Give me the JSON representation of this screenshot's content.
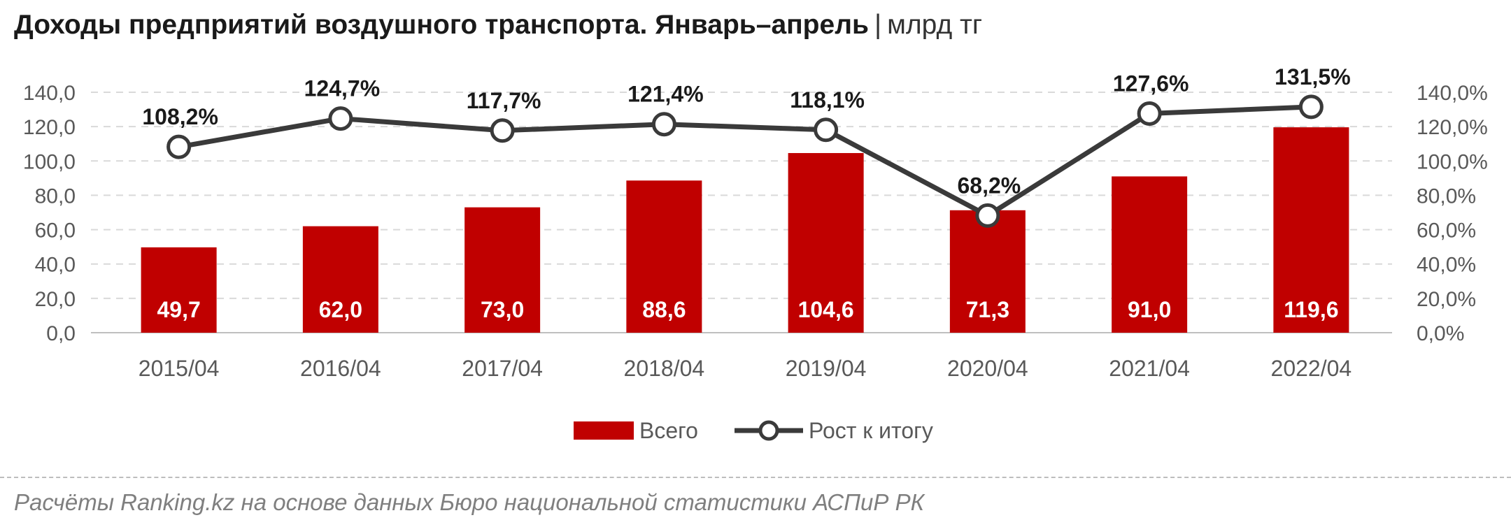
{
  "title": {
    "main": "Доходы предприятий воздушного транспорта. Январь–апрель",
    "separator": "|",
    "unit": "млрд тг"
  },
  "source": "Расчёты Ranking.kz на основе данных Бюро национальной статистики АСПиР РК",
  "colors": {
    "bar": "#c00000",
    "line": "#3a3a3a",
    "marker_fill": "#ffffff",
    "grid": "#d9d9d9",
    "axis_text": "#595959"
  },
  "chart_data": {
    "type": "bar",
    "categories": [
      "2015/04",
      "2016/04",
      "2017/04",
      "2018/04",
      "2019/04",
      "2020/04",
      "2021/04",
      "2022/04"
    ],
    "series": [
      {
        "name": "Всего",
        "type": "bar",
        "axis": "left",
        "values": [
          49.7,
          62.0,
          73.0,
          88.6,
          104.6,
          71.3,
          91.0,
          119.6
        ],
        "labels": [
          "49,7",
          "62,0",
          "73,0",
          "88,6",
          "104,6",
          "71,3",
          "91,0",
          "119,6"
        ]
      },
      {
        "name": "Рост к итогу",
        "type": "line",
        "axis": "right",
        "values": [
          108.2,
          124.7,
          117.7,
          121.4,
          118.1,
          68.2,
          127.6,
          131.5
        ],
        "labels": [
          "108,2%",
          "124,7%",
          "117,7%",
          "121,4%",
          "118,1%",
          "68,2%",
          "127,6%",
          "131,5%"
        ]
      }
    ],
    "y_left": {
      "min": 0,
      "max": 140,
      "step": 20,
      "ticks": [
        "0,0",
        "20,0",
        "40,0",
        "60,0",
        "80,0",
        "100,0",
        "120,0",
        "140,0"
      ]
    },
    "y_right": {
      "min": 0,
      "max": 140,
      "step": 20,
      "ticks": [
        "0,0%",
        "20,0%",
        "40,0%",
        "60,0%",
        "80,0%",
        "100,0%",
        "120,0%",
        "140,0%"
      ]
    },
    "grid": true,
    "legend": {
      "placement": "bottom",
      "entries": [
        "Всего",
        "Рост к итогу"
      ]
    }
  }
}
